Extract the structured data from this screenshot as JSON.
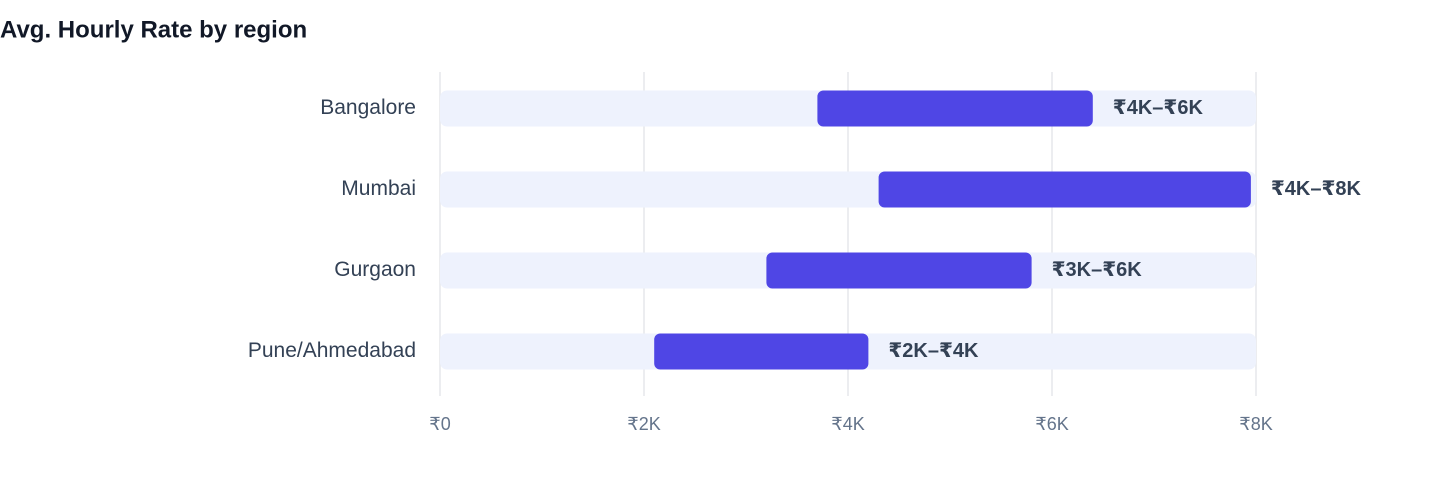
{
  "chart_data": {
    "type": "range_bar",
    "title": "Avg. Hourly Rate by region",
    "categories": [
      "Bangalore",
      "Mumbai",
      "Gurgaon",
      "Pune/Ahmedabad"
    ],
    "values": [
      [
        3700,
        6400
      ],
      [
        4300,
        7950
      ],
      [
        3200,
        5800
      ],
      [
        2100,
        4200
      ]
    ],
    "value_labels": [
      "₹4K–₹6K",
      "₹4K–₹8K",
      "₹3K–₹6K",
      "₹2K–₹4K"
    ],
    "color": "#4f46e5",
    "xlim": [
      0,
      8000
    ],
    "xticks": [
      {
        "value": 0,
        "label": "₹0"
      },
      {
        "value": 2000,
        "label": "₹2K"
      },
      {
        "value": 4000,
        "label": "₹4K"
      },
      {
        "value": 6000,
        "label": "₹6K"
      },
      {
        "value": 8000,
        "label": "₹8K"
      }
    ],
    "grid": true
  }
}
